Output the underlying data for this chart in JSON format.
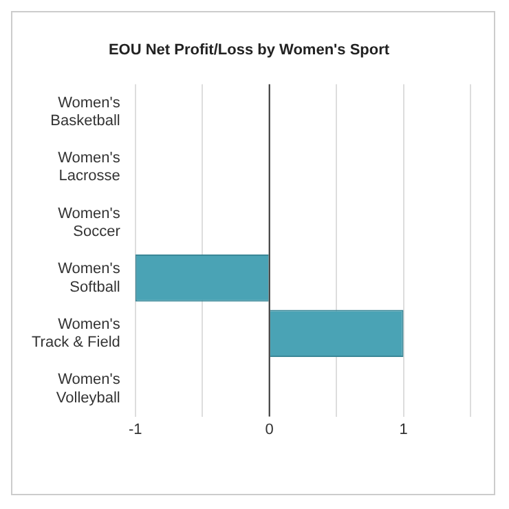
{
  "chart_data": {
    "type": "bar",
    "orientation": "horizontal",
    "title": "EOU Net Profit/Loss by Women's Sport",
    "categories": [
      "Women's Basketball",
      "Women's Lacrosse",
      "Women's Soccer",
      "Women's Softball",
      "Women's Track & Field",
      "Women's Volleyball"
    ],
    "values": [
      0,
      0,
      0,
      -1,
      1,
      0
    ],
    "color": "#4aa3b5",
    "xlim": [
      -1,
      1.5
    ],
    "xticks": [
      -1,
      {
        "value": -0.5,
        "label": null
      },
      0,
      {
        "value": 0.5,
        "label": null
      },
      1,
      {
        "value": 1.5,
        "label": null
      }
    ],
    "grid": "x",
    "legend": false
  }
}
